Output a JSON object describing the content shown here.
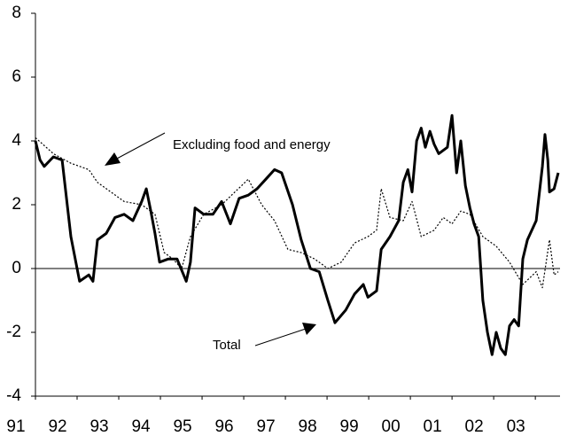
{
  "chart_data": {
    "type": "line",
    "series": [
      {
        "name": "Total",
        "color": "#000000",
        "style": "solid",
        "x": [
          1991.0,
          1991.11,
          1991.21,
          1991.43,
          1991.64,
          1991.85,
          1992.06,
          1992.28,
          1992.38,
          1992.49,
          1992.7,
          1992.91,
          1993.13,
          1993.34,
          1993.55,
          1993.66,
          1993.77,
          1993.87,
          1993.98,
          1994.19,
          1994.4,
          1994.62,
          1994.72,
          1994.83,
          1995.04,
          1995.26,
          1995.47,
          1995.68,
          1995.89,
          1996.11,
          1996.32,
          1996.53,
          1996.74,
          1996.91,
          1997.17,
          1997.38,
          1997.6,
          1997.81,
          1998.02,
          1998.19,
          1998.45,
          1998.66,
          1998.87,
          1998.98,
          1999.19,
          1999.3,
          1999.51,
          1999.72,
          1999.83,
          1999.94,
          2000.04,
          2000.15,
          2000.26,
          2000.36,
          2000.47,
          2000.57,
          2000.68,
          2000.89,
          2001.0,
          2001.11,
          2001.21,
          2001.32,
          2001.43,
          2001.53,
          2001.64,
          2001.74,
          2001.85,
          2001.96,
          2002.06,
          2002.17,
          2002.28,
          2002.38,
          2002.49,
          2002.6,
          2002.7,
          2002.81,
          2003.02,
          2003.17,
          2003.23,
          2003.3,
          2003.34,
          2003.45,
          2003.55
        ],
        "values": [
          4.0,
          3.4,
          3.2,
          3.5,
          3.4,
          1.0,
          -0.4,
          -0.2,
          -0.4,
          0.9,
          1.1,
          1.6,
          1.7,
          1.5,
          2.1,
          2.5,
          1.8,
          1.1,
          0.2,
          0.3,
          0.3,
          -0.4,
          0.2,
          1.9,
          1.7,
          1.7,
          2.1,
          1.4,
          2.2,
          2.3,
          2.5,
          2.8,
          3.1,
          3.0,
          2.0,
          0.9,
          0.0,
          -0.1,
          -1.0,
          -1.7,
          -1.3,
          -0.8,
          -0.5,
          -0.9,
          -0.7,
          0.6,
          1.0,
          1.5,
          2.7,
          3.1,
          2.4,
          4.0,
          4.4,
          3.8,
          4.3,
          3.9,
          3.6,
          3.8,
          4.8,
          3.0,
          4.0,
          2.6,
          1.9,
          1.4,
          1.0,
          -1.0,
          -2.0,
          -2.7,
          -2.0,
          -2.5,
          -2.7,
          -1.8,
          -1.6,
          -1.8,
          0.3,
          0.9,
          1.5,
          3.2,
          4.2,
          3.4,
          2.4,
          2.5,
          3.0
        ]
      },
      {
        "name": "Excluding food and energy",
        "color": "#000000",
        "style": "dotted",
        "x": [
          1991.0,
          1991.43,
          1991.85,
          1992.28,
          1992.49,
          1992.81,
          1993.13,
          1993.55,
          1993.87,
          1994.09,
          1994.3,
          1994.51,
          1994.72,
          1995.04,
          1995.47,
          1995.79,
          1996.11,
          1996.43,
          1996.74,
          1997.06,
          1997.38,
          1997.7,
          1998.02,
          1998.34,
          1998.66,
          1998.98,
          1999.19,
          1999.3,
          1999.51,
          1999.83,
          2000.04,
          2000.26,
          2000.57,
          2000.79,
          2001.0,
          2001.21,
          2001.43,
          2001.74,
          2002.06,
          2002.38,
          2002.7,
          2003.02,
          2003.17,
          2003.34,
          2003.45,
          2003.55
        ],
        "values": [
          4.1,
          3.6,
          3.3,
          3.1,
          2.7,
          2.4,
          2.1,
          2.0,
          1.7,
          0.5,
          0.3,
          0.0,
          1.0,
          1.7,
          2.0,
          2.4,
          2.8,
          2.0,
          1.5,
          0.6,
          0.5,
          0.3,
          0.0,
          0.2,
          0.8,
          1.0,
          1.2,
          2.5,
          1.6,
          1.5,
          2.1,
          1.0,
          1.2,
          1.6,
          1.4,
          1.8,
          1.7,
          1.0,
          0.7,
          0.2,
          -0.5,
          -0.1,
          -0.6,
          0.9,
          -0.2,
          -0.1
        ]
      }
    ],
    "xlim": [
      1991,
      2003.55
    ],
    "xticks": [
      {
        "value": 1991,
        "label": "91"
      },
      {
        "value": 1992,
        "label": "92"
      },
      {
        "value": 1993,
        "label": "93"
      },
      {
        "value": 1994,
        "label": "94"
      },
      {
        "value": 1995,
        "label": "95"
      },
      {
        "value": 1996,
        "label": "96"
      },
      {
        "value": 1997,
        "label": "97"
      },
      {
        "value": 1998,
        "label": "98"
      },
      {
        "value": 1999,
        "label": "99"
      },
      {
        "value": 2000,
        "label": "00"
      },
      {
        "value": 2001,
        "label": "01"
      },
      {
        "value": 2002,
        "label": "02"
      },
      {
        "value": 2003,
        "label": "03"
      }
    ],
    "ylim": [
      -4,
      8
    ],
    "yticks": [
      -4,
      -2,
      0,
      2,
      4,
      6,
      8
    ],
    "grid": false
  }
}
